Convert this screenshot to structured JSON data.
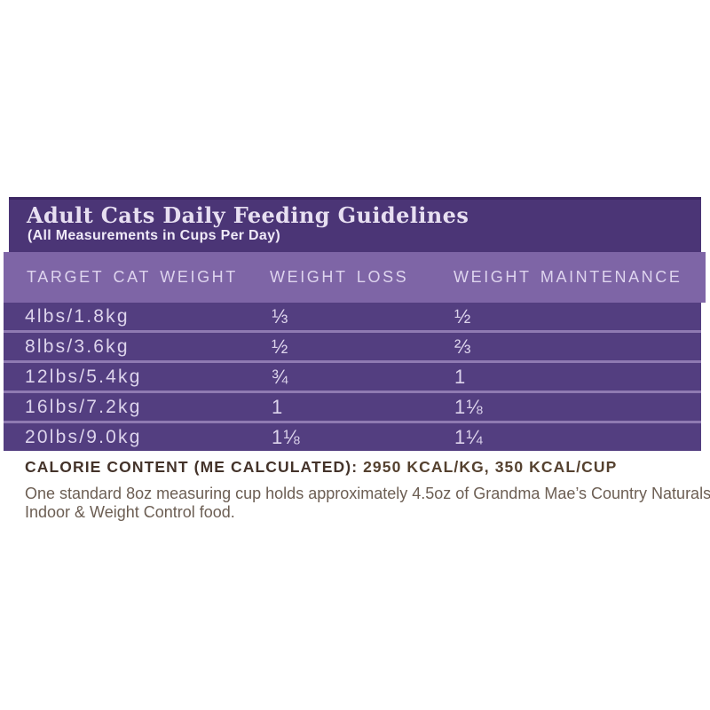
{
  "panel": {
    "title": "Adult Cats Daily Feeding Guidelines",
    "subtitle": "(All Measurements in Cups Per Day)"
  },
  "table": {
    "columns": [
      "TARGET CAT WEIGHT",
      "WEIGHT LOSS",
      "WEIGHT MAINTENANCE"
    ],
    "rows": [
      {
        "weight": "4lbs/1.8kg",
        "weight_loss": "⅓",
        "weight_maintenance": "½"
      },
      {
        "weight": "8lbs/3.6kg",
        "weight_loss": "½",
        "weight_maintenance": "⅔"
      },
      {
        "weight": "12lbs/5.4kg",
        "weight_loss": "¾",
        "weight_maintenance": "1"
      },
      {
        "weight": "16lbs/7.2kg",
        "weight_loss": "1",
        "weight_maintenance": "1⅛"
      },
      {
        "weight": "20lbs/9.0kg",
        "weight_loss": "1⅛",
        "weight_maintenance": "1¼"
      }
    ]
  },
  "footer": {
    "calorie_label": "CALORIE CONTENT (ME CALCULATED):",
    "calorie_value": "2950 KCAL/KG, 350 KCAL/CUP",
    "note_line1": "One standard 8oz measuring cup holds approximately 4.5oz of Grandma Mae’s Country Naturals",
    "note_line2": "Indoor & Weight Control food."
  },
  "colors": {
    "panel_purple": "#4b3576",
    "body_purple": "#533e80",
    "header_band_purple": "#7e65a6",
    "divider_purple": "#8f7ab2",
    "light_text": "#ddd4ec",
    "calorie_brown": "#44332a",
    "note_brown": "#6c5e53"
  }
}
